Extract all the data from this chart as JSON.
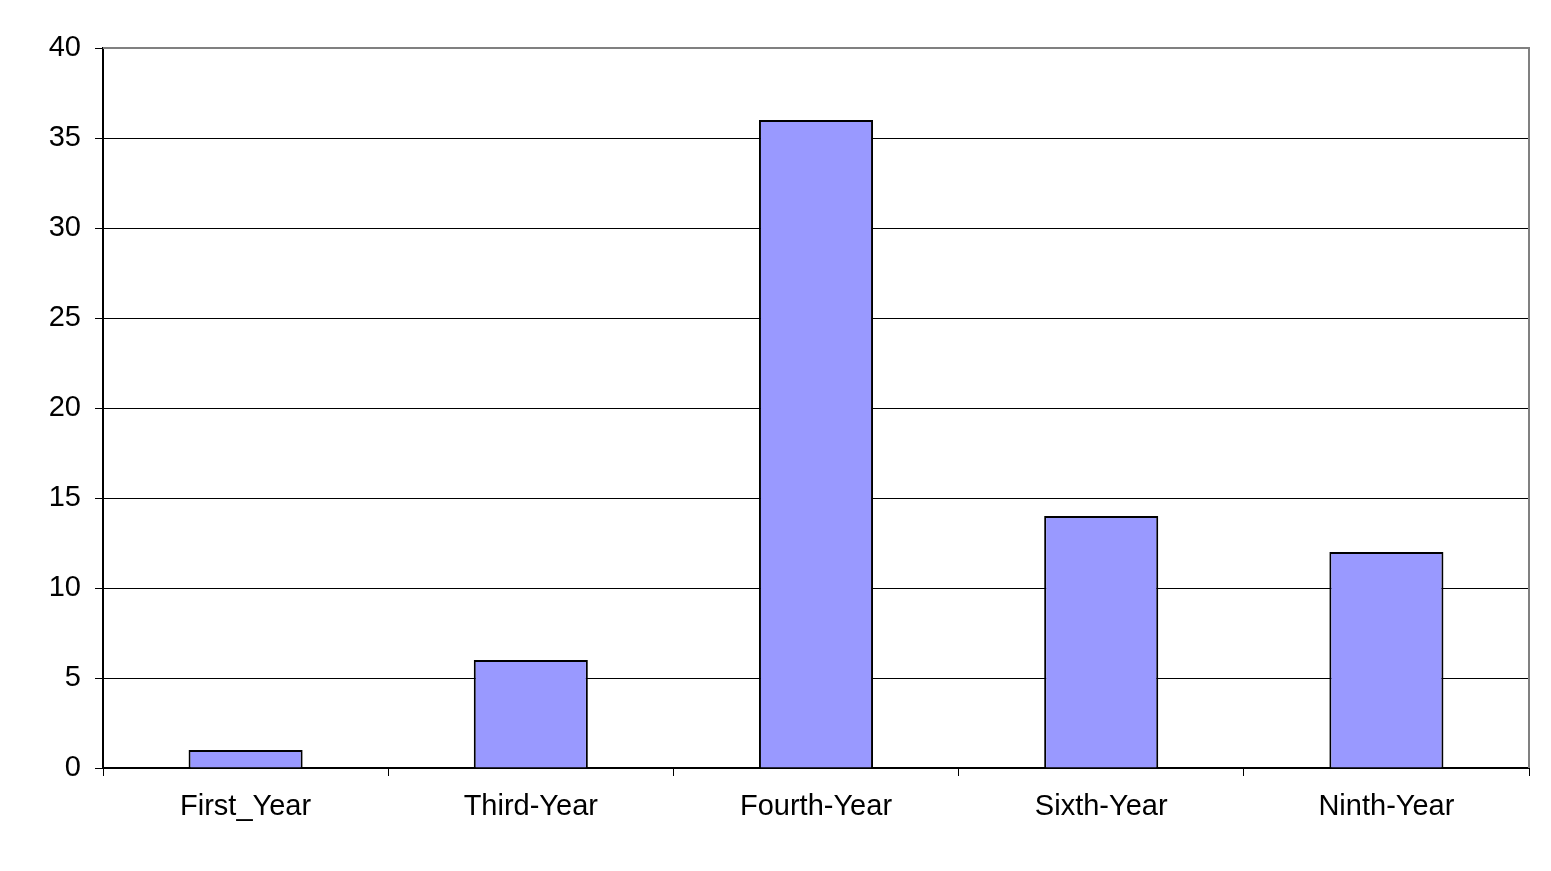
{
  "chart_data": {
    "type": "bar",
    "categories": [
      "First_Year",
      "Third-Year",
      "Fourth-Year",
      "Sixth-Year",
      "Ninth-Year"
    ],
    "values": [
      1,
      6,
      36,
      14,
      12
    ],
    "color": "#9999ff",
    "ylim": [
      0,
      40
    ],
    "yticks": [
      0,
      5,
      10,
      15,
      20,
      25,
      30,
      35,
      40
    ],
    "grid": "y",
    "legend": false
  }
}
